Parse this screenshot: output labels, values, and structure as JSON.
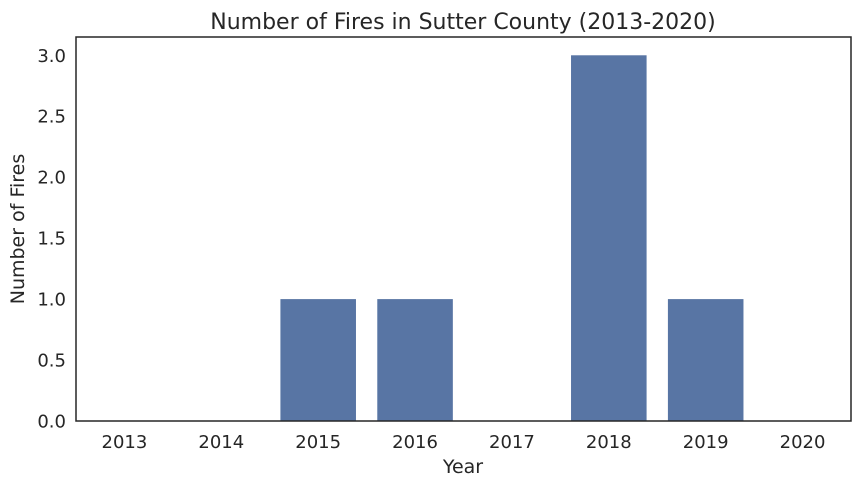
{
  "chart_data": {
    "type": "bar",
    "title": "Number of Fires in Sutter County (2013-2020)",
    "xlabel": "Year",
    "ylabel": "Number of Fires",
    "categories": [
      "2013",
      "2014",
      "2015",
      "2016",
      "2017",
      "2018",
      "2019",
      "2020"
    ],
    "values": [
      0,
      0,
      1,
      1,
      0,
      3,
      1,
      0
    ],
    "ylim": [
      0,
      3.15
    ],
    "yticks": [
      "0.0",
      "0.5",
      "1.0",
      "1.5",
      "2.0",
      "2.5",
      "3.0"
    ],
    "grid": false,
    "colors": {
      "bar": "#5875a4",
      "axis": "#262626",
      "background": "#ffffff"
    }
  }
}
